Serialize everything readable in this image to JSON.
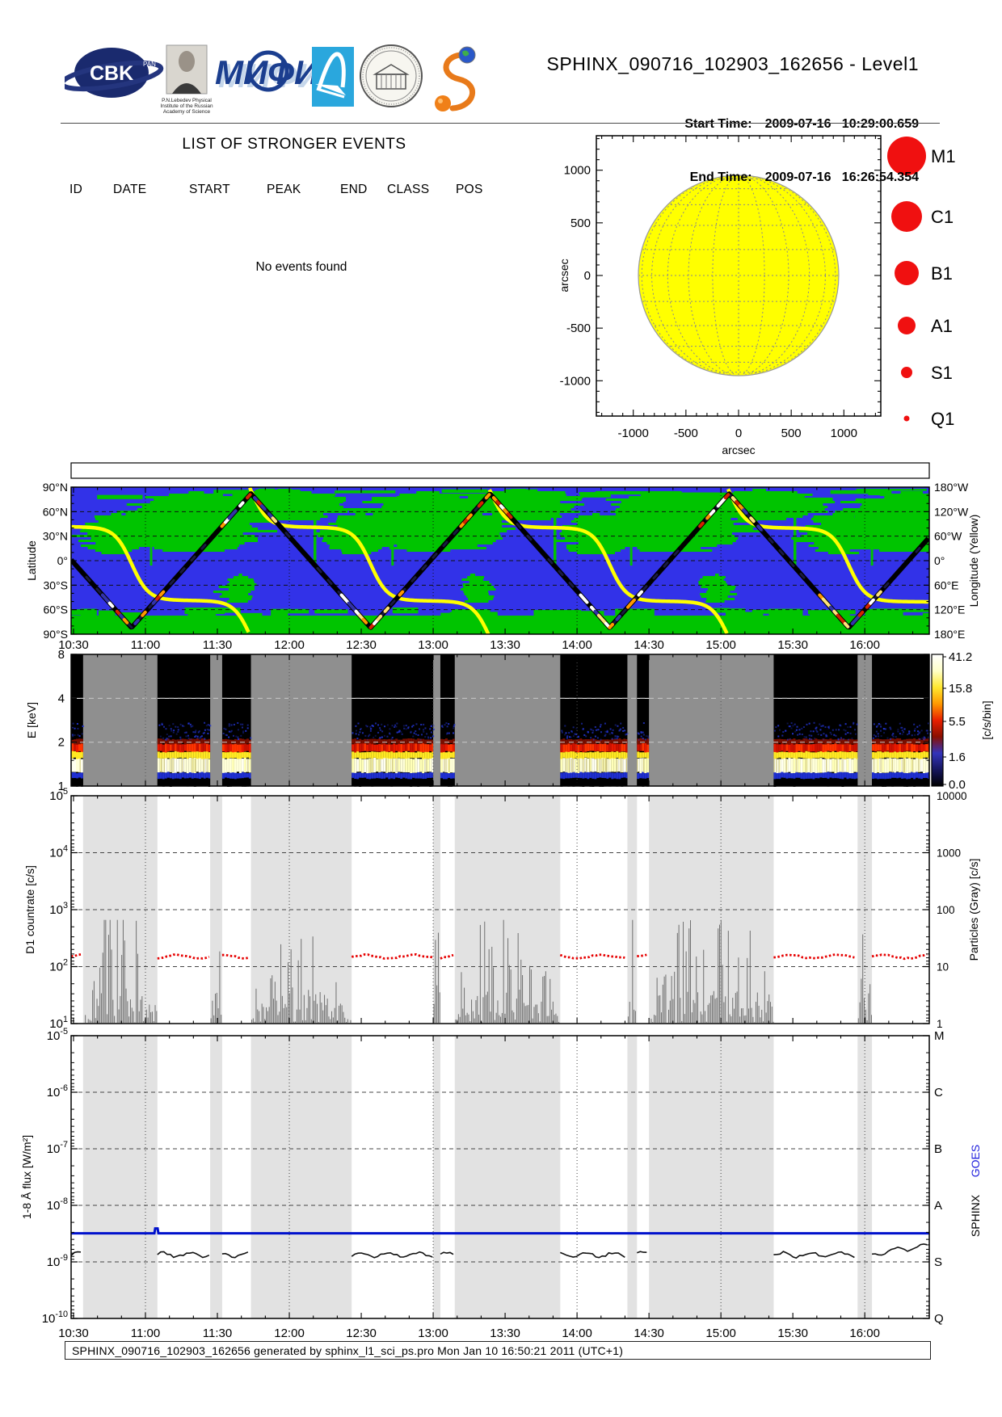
{
  "header": {
    "title": "SPHINX_090716_102903_162656 - Level1",
    "start_label": "Start Time:",
    "start_value": "2009-07-16   10:29:00.659",
    "end_label": "End Time:",
    "end_value": "2009-07-16   16:26:54.354",
    "logos": {
      "cbk_text": "CBK",
      "cbk_sub": "PAN",
      "lebedev_caption": [
        "P.N.Lebedev Physical",
        "Institute of the Russian",
        "Academy of Science"
      ],
      "mephi_text": "МИФИ",
      "a_text": "A",
      "sphinx_letter": "S"
    }
  },
  "events": {
    "heading": "LIST OF STRONGER EVENTS",
    "columns": [
      "ID",
      "DATE",
      "START",
      "PEAK",
      "END",
      "CLASS",
      "POS"
    ],
    "empty_message": "No events found"
  },
  "sun_plot": {
    "xlabel": "arcsec",
    "ylabel": "arcsec",
    "tick_labels": [
      "-1000",
      "-500",
      "0",
      "500",
      "1000"
    ],
    "tick_values": [
      -1000,
      -500,
      0,
      500,
      1000
    ],
    "disk_color": "#ffff00",
    "grid_color": "#8a8a8a",
    "legend_color": "#f01010",
    "legend": [
      {
        "label": "M1",
        "radius": 24
      },
      {
        "label": "C1",
        "radius": 19
      },
      {
        "label": "B1",
        "radius": 15
      },
      {
        "label": "A1",
        "radius": 11
      },
      {
        "label": "S1",
        "radius": 7
      },
      {
        "label": "Q1",
        "radius": 3.5
      }
    ]
  },
  "time_axis": {
    "start": "10:29:00.659",
    "end": "16:26:54.354",
    "duration_min": 357.9,
    "labels": [
      "10:30",
      "11:00",
      "11:30",
      "12:00",
      "12:30",
      "13:00",
      "13:30",
      "14:00",
      "14:30",
      "15:00",
      "15:30",
      "16:00"
    ],
    "label_step_min": 30,
    "first_label_offset_min": 1
  },
  "chart_data": [
    {
      "id": "orbit_map",
      "type": "heatmap",
      "ylabel_left": "Latitude",
      "ylabel_right": "Longitude (Yellow)",
      "yticks_left": [
        "90°N",
        "60°N",
        "30°N",
        "0°",
        "30°S",
        "60°S",
        "90°S"
      ],
      "yticks_right": [
        "180°W",
        "120°W",
        "60°W",
        "0°",
        "60°E",
        "120°E",
        "180°E"
      ],
      "ocean_color": "#3232e8",
      "land_color": "#00c400",
      "track_color": "#000000",
      "longitude_color": "#ffff00",
      "orbit": {
        "period_min": 99.7,
        "max_lat_deg": 82,
        "peak_minutes": [
          -24.6,
          75,
          174.7,
          274.4,
          374.1
        ],
        "valley_minutes": [
          25.2,
          124.9,
          224.6,
          324.3
        ],
        "lon_start_deg": -83,
        "lon_step_deg": 178,
        "lon_drift_deg_per_min": 0.05
      }
    },
    {
      "id": "spectrogram",
      "type": "heatmap",
      "ylabel": "E [keV]",
      "yticks": [
        "8",
        "4",
        "2",
        "1"
      ],
      "yvalues_kev": [
        8,
        4,
        2,
        1
      ],
      "bg_color": "#8f8f8f",
      "sun_intervals_min": [
        [
          0,
          5
        ],
        [
          36,
          58
        ],
        [
          63,
          75
        ],
        [
          117,
          151
        ],
        [
          154,
          160
        ],
        [
          204,
          232
        ],
        [
          236,
          241
        ],
        [
          293,
          328
        ],
        [
          334,
          357.9
        ]
      ],
      "bands_kev": [
        {
          "from": 1.0,
          "to": 1.13,
          "color": "#000000",
          "style": "solid"
        },
        {
          "from": 1.13,
          "to": 1.24,
          "color": "#1f2fd0",
          "style": "solid"
        },
        {
          "from": 1.24,
          "to": 1.55,
          "color": "#ffffd0",
          "style": "bright"
        },
        {
          "from": 1.55,
          "to": 1.72,
          "color": "#ffe822",
          "style": "solid"
        },
        {
          "from": 1.72,
          "to": 1.95,
          "color": "#e81800",
          "style": "solid"
        },
        {
          "from": 1.95,
          "to": 2.1,
          "color": "#7a0f00",
          "style": "solid"
        },
        {
          "from": 2.1,
          "to": 2.75,
          "color": "#2233cc",
          "style": "speckle"
        }
      ],
      "colorbar": {
        "tick_labels": [
          "41.2",
          "15.8",
          "5.5",
          "1.6",
          "0.0"
        ],
        "label": "[c/s/bin]",
        "stops": [
          "#ffffff",
          "#ffffc8",
          "#ffe830",
          "#ff9900",
          "#e82000",
          "#8a0f00",
          "#3333bb",
          "#16165e",
          "#000000"
        ]
      }
    },
    {
      "id": "d1_countrate",
      "type": "line",
      "ylabel_left": "D1 countrate [c/s]",
      "ylabel_right": "Particles (Gray) [c/s]",
      "yticks_left_exp": [
        "5",
        "4",
        "3",
        "2",
        "1"
      ],
      "yticks_right": [
        "10000",
        "1000",
        "100",
        "10",
        "1"
      ],
      "quiet_countrate_cps": 150,
      "countrate_color": "#e60000",
      "particle_color": "#6f6f6f",
      "particle_max_cps": 700,
      "band_color": "#e2e2e2"
    },
    {
      "id": "xray_flux",
      "type": "line",
      "ylabel_left": "1-8 Å flux [W/m²]",
      "yticks_left_exp": [
        "-5",
        "-6",
        "-7",
        "-8",
        "-9",
        "-10"
      ],
      "yticks_right": [
        "M",
        "C",
        "B",
        "A",
        "S",
        "Q"
      ],
      "right_labels": [
        {
          "text": "SPHINX",
          "color": "#000000"
        },
        {
          "text": "GOES",
          "color": "#2222dd"
        }
      ],
      "goes_level_wm2": 3.2e-09,
      "sphinx_level_wm2": 1.35e-09,
      "goes_color": "#0011cc",
      "sphinx_color": "#111111",
      "band_color": "#e2e2e2"
    }
  ],
  "footer": {
    "text": "SPHINX_090716_102903_162656 generated by sphinx_l1_sci_ps.pro Mon Jan 10 16:50:21 2011 (UTC+1)"
  }
}
